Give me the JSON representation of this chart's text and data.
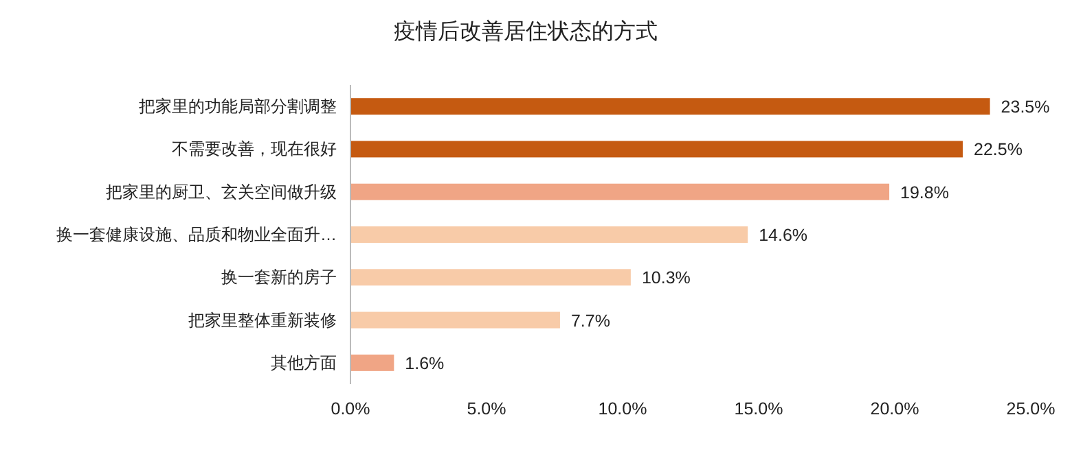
{
  "chart_data": {
    "type": "bar",
    "orientation": "horizontal",
    "title": "疫情后改善居住状态的方式",
    "categories": [
      "把家里的功能局部分割调整",
      "不需要改善，现在很好",
      "把家里的厨卫、玄关空间做升级",
      "换一套健康设施、品质和物业全面升…",
      "换一套新的房子",
      "把家里整体重新装修",
      "其他方面"
    ],
    "values": [
      23.5,
      22.5,
      19.8,
      14.6,
      10.3,
      7.7,
      1.6
    ],
    "colors": [
      "#c55a11",
      "#c55a11",
      "#f0a585",
      "#f8cba8",
      "#f8cba8",
      "#f8cba8",
      "#f0a585"
    ],
    "value_labels": [
      "23.5%",
      "22.5%",
      "19.8%",
      "14.6%",
      "10.3%",
      "7.7%",
      "1.6%"
    ],
    "xlim": [
      0,
      25
    ],
    "xticks": [
      {
        "value": 0,
        "label": "0.0%"
      },
      {
        "value": 5,
        "label": "5.0%"
      },
      {
        "value": 10,
        "label": "10.0%"
      },
      {
        "value": 15,
        "label": "15.0%"
      },
      {
        "value": 20,
        "label": "20.0%"
      },
      {
        "value": 25,
        "label": "25.0%"
      }
    ]
  }
}
